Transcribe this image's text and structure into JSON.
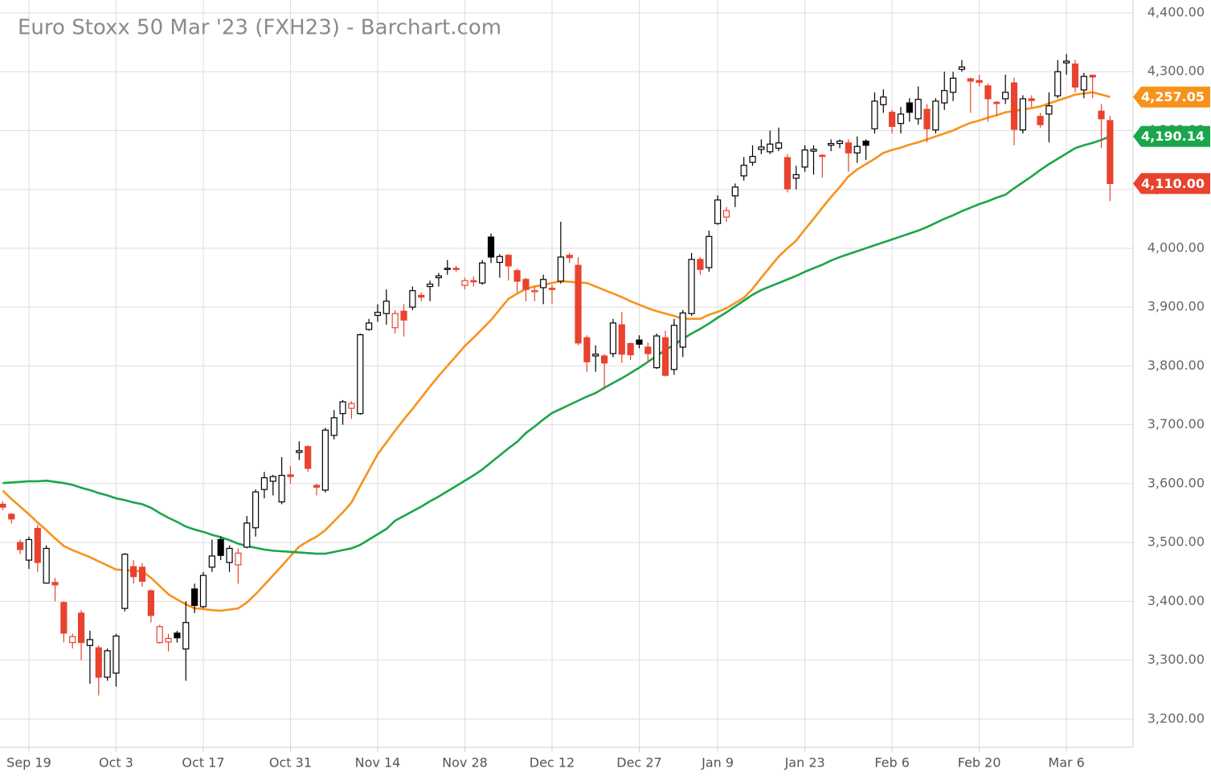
{
  "chart_data": {
    "type": "candlestick",
    "title": "Euro Stoxx 50 Mar '23 (FXH23) - Barchart.com",
    "categories": [
      null,
      null,
      null,
      "Sep 19",
      null,
      null,
      null,
      null,
      null,
      null,
      null,
      null,
      null,
      "Oct 3",
      null,
      null,
      null,
      null,
      null,
      null,
      null,
      null,
      null,
      "Oct 17",
      null,
      null,
      null,
      null,
      null,
      null,
      null,
      null,
      null,
      "Oct 31",
      null,
      null,
      null,
      null,
      null,
      null,
      null,
      null,
      null,
      "Nov 14",
      null,
      null,
      null,
      null,
      null,
      null,
      null,
      null,
      null,
      "Nov 28",
      null,
      null,
      null,
      null,
      null,
      null,
      null,
      null,
      null,
      "Dec 12",
      null,
      null,
      null,
      null,
      null,
      null,
      null,
      null,
      null,
      "Dec 27",
      null,
      null,
      null,
      null,
      null,
      null,
      null,
      null,
      "Jan 9",
      null,
      null,
      null,
      null,
      null,
      null,
      null,
      null,
      null,
      "Jan 23",
      null,
      null,
      null,
      null,
      null,
      null,
      null,
      null,
      null,
      "Feb 6",
      null,
      null,
      null,
      null,
      null,
      null,
      null,
      null,
      null,
      "Feb 20",
      null,
      null,
      null,
      null,
      null,
      null,
      null,
      null,
      null,
      "Mar 6",
      null,
      null,
      null,
      null,
      null
    ],
    "open": [
      3565,
      3548,
      3500,
      3470,
      3524,
      3431,
      3432,
      3398,
      3330,
      3380,
      3325,
      3321,
      3271,
      3278,
      3388,
      3459,
      3458,
      3418,
      3330,
      3331,
      3346,
      3319,
      3421,
      3391,
      3458,
      3505,
      3466,
      3462,
      3492,
      3525,
      3590,
      3604,
      3569,
      3615,
      3653,
      3663,
      3597,
      3589,
      3682,
      3719,
      3728,
      3719,
      3862,
      3886,
      3889,
      3865,
      3893,
      3900,
      3920,
      3935,
      3950,
      3964,
      3966,
      3937,
      3945,
      3941,
      4019,
      3976,
      3988,
      3962,
      3947,
      3926,
      3933,
      3932,
      3944,
      3988,
      3971,
      3848,
      3817,
      3817,
      3821,
      3870,
      3838,
      3844,
      3832,
      3797,
      3848,
      3794,
      3832,
      3889,
      3981,
      3967,
      4042,
      4053,
      4089,
      4123,
      4146,
      4168,
      4164,
      4170,
      4154,
      4119,
      4138,
      4165,
      4158,
      4175,
      4178,
      4179,
      4162,
      4182,
      4203,
      4244,
      4231,
      4212,
      4247,
      4220,
      4236,
      4201,
      4247,
      4265,
      4304,
      4288,
      4285,
      4276,
      4248,
      4254,
      4281,
      4201,
      4254,
      4224,
      4228,
      4259,
      4315,
      4313,
      4269,
      4294,
      4233,
      4217
    ],
    "high": [
      3570,
      3550,
      3505,
      3510,
      3530,
      3495,
      3440,
      3400,
      3345,
      3385,
      3350,
      3325,
      3320,
      3345,
      3482,
      3470,
      3465,
      3420,
      3360,
      3345,
      3350,
      3400,
      3430,
      3450,
      3505,
      3510,
      3495,
      3490,
      3545,
      3590,
      3620,
      3615,
      3645,
      3630,
      3672,
      3665,
      3600,
      3695,
      3725,
      3742,
      3740,
      3855,
      3880,
      3905,
      3930,
      3895,
      3905,
      3935,
      3925,
      3945,
      3958,
      3980,
      3970,
      3950,
      3952,
      3980,
      4025,
      3990,
      3990,
      3965,
      3950,
      3935,
      3955,
      3938,
      4045,
      3992,
      3985,
      3852,
      3835,
      3820,
      3880,
      3892,
      3840,
      3852,
      3840,
      3855,
      3860,
      3880,
      3895,
      3992,
      3985,
      4030,
      4090,
      4070,
      4110,
      4155,
      4175,
      4185,
      4200,
      4205,
      4160,
      4140,
      4175,
      4175,
      4160,
      4185,
      4185,
      4185,
      4190,
      4185,
      4265,
      4270,
      4235,
      4240,
      4255,
      4275,
      4245,
      4255,
      4300,
      4300,
      4320,
      4290,
      4295,
      4280,
      4250,
      4295,
      4290,
      4260,
      4260,
      4230,
      4265,
      4320,
      4330,
      4320,
      4298,
      4295,
      4245,
      4225
    ],
    "low": [
      3555,
      3532,
      3480,
      3455,
      3450,
      3430,
      3400,
      3330,
      3320,
      3300,
      3260,
      3240,
      3265,
      3255,
      3383,
      3430,
      3425,
      3364,
      3328,
      3315,
      3330,
      3265,
      3380,
      3388,
      3450,
      3470,
      3450,
      3430,
      3490,
      3510,
      3575,
      3580,
      3565,
      3600,
      3640,
      3620,
      3580,
      3585,
      3675,
      3700,
      3710,
      3717,
      3860,
      3875,
      3870,
      3855,
      3850,
      3895,
      3910,
      3910,
      3935,
      3955,
      3960,
      3930,
      3935,
      3938,
      3975,
      3950,
      3945,
      3925,
      3910,
      3910,
      3905,
      3905,
      3940,
      3975,
      3835,
      3790,
      3790,
      3760,
      3815,
      3805,
      3810,
      3830,
      3805,
      3795,
      3782,
      3785,
      3815,
      3885,
      3955,
      3960,
      4040,
      4045,
      4070,
      4115,
      4140,
      4160,
      4160,
      4165,
      4095,
      4100,
      4130,
      4125,
      4120,
      4165,
      4170,
      4130,
      4145,
      4150,
      4195,
      4230,
      4195,
      4195,
      4215,
      4210,
      4180,
      4195,
      4235,
      4250,
      4300,
      4230,
      4275,
      4215,
      4225,
      4245,
      4175,
      4195,
      4240,
      4205,
      4180,
      4255,
      4295,
      4265,
      4255,
      4255,
      4170,
      4080
    ],
    "close": [
      3560,
      3540,
      3488,
      3505,
      3466,
      3490,
      3428,
      3346,
      3340,
      3330,
      3335,
      3271,
      3316,
      3341,
      3480,
      3442,
      3434,
      3376,
      3357,
      3337,
      3338,
      3364,
      3393,
      3444,
      3477,
      3478,
      3490,
      3482,
      3533,
      3586,
      3610,
      3612,
      3614,
      3612,
      3656,
      3626,
      3594,
      3691,
      3712,
      3739,
      3736,
      3853,
      3873,
      3891,
      3910,
      3889,
      3878,
      3928,
      3917,
      3939,
      3953,
      3966,
      3964,
      3945,
      3944,
      3975,
      3985,
      3986,
      3970,
      3944,
      3930,
      3928,
      3947,
      3930,
      3985,
      3984,
      3839,
      3807,
      3820,
      3805,
      3873,
      3820,
      3819,
      3837,
      3821,
      3851,
      3784,
      3869,
      3890,
      3981,
      3964,
      4020,
      4082,
      4064,
      4104,
      4141,
      4156,
      4172,
      4177,
      4179,
      4101,
      4125,
      4167,
      4168,
      4156,
      4178,
      4182,
      4162,
      4173,
      4175,
      4250,
      4257,
      4207,
      4228,
      4231,
      4253,
      4203,
      4250,
      4268,
      4289,
      4308,
      4284,
      4282,
      4254,
      4246,
      4265,
      4202,
      4254,
      4251,
      4210,
      4242,
      4300,
      4318,
      4274,
      4292,
      4291,
      4220,
      4110
    ],
    "last_label": "4,110.00",
    "up_color": "#000000",
    "down_color": "#e8432e",
    "series": [
      {
        "color": "#f7931a",
        "last_label": "4,257.05",
        "values": [
          3588,
          3574,
          3561,
          3548,
          3534,
          3521,
          3507,
          3494,
          3487,
          3481,
          3475,
          3468,
          3461,
          3454,
          3453,
          3452,
          3451,
          3440,
          3426,
          3412,
          3403,
          3395,
          3388,
          3387,
          3385,
          3384,
          3386,
          3388,
          3398,
          3412,
          3428,
          3444,
          3460,
          3477,
          3493,
          3502,
          3510,
          3521,
          3536,
          3551,
          3568,
          3596,
          3623,
          3650,
          3670,
          3690,
          3709,
          3727,
          3746,
          3765,
          3783,
          3800,
          3817,
          3834,
          3848,
          3863,
          3878,
          3896,
          3914,
          3923,
          3931,
          3935,
          3938,
          3941,
          3944,
          3943,
          3942,
          3941,
          3935,
          3929,
          3923,
          3917,
          3910,
          3904,
          3898,
          3893,
          3889,
          3885,
          3880,
          3880,
          3880,
          3887,
          3892,
          3898,
          3907,
          3916,
          3931,
          3950,
          3968,
          3986,
          4000,
          4013,
          4032,
          4050,
          4069,
          4087,
          4104,
          4122,
          4134,
          4143,
          4152,
          4162,
          4167,
          4171,
          4176,
          4180,
          4185,
          4190,
          4195,
          4200,
          4207,
          4213,
          4217,
          4222,
          4226,
          4231,
          4233,
          4236,
          4238,
          4241,
          4246,
          4251,
          4256,
          4261,
          4263,
          4265,
          4261,
          4257.05
        ]
      },
      {
        "color": "#1aa64a",
        "last_label": "4,190.14",
        "values": [
          3601,
          3602,
          3603,
          3604,
          3604,
          3605,
          3603,
          3601,
          3598,
          3593,
          3589,
          3584,
          3580,
          3575,
          3572,
          3568,
          3565,
          3559,
          3550,
          3542,
          3535,
          3527,
          3522,
          3518,
          3513,
          3509,
          3504,
          3498,
          3494,
          3491,
          3488,
          3486,
          3485,
          3484,
          3483,
          3482,
          3481,
          3481,
          3484,
          3487,
          3490,
          3496,
          3505,
          3514,
          3523,
          3537,
          3545,
          3553,
          3561,
          3570,
          3578,
          3587,
          3596,
          3605,
          3614,
          3624,
          3636,
          3648,
          3660,
          3671,
          3686,
          3697,
          3709,
          3720,
          3727,
          3734,
          3741,
          3748,
          3754,
          3763,
          3771,
          3779,
          3788,
          3797,
          3807,
          3817,
          3827,
          3836,
          3846,
          3855,
          3863,
          3872,
          3882,
          3891,
          3901,
          3911,
          3921,
          3929,
          3935,
          3941,
          3947,
          3953,
          3960,
          3966,
          3972,
          3979,
          3985,
          3990,
          3995,
          4000,
          4005,
          4010,
          4015,
          4020,
          4025,
          4030,
          4036,
          4043,
          4050,
          4056,
          4063,
          4069,
          4075,
          4080,
          4086,
          4091,
          4102,
          4112,
          4122,
          4133,
          4143,
          4152,
          4161,
          4170,
          4175,
          4179,
          4184,
          4190.14
        ]
      }
    ],
    "ylim": [
      3152,
      4400
    ],
    "yticks": [
      {
        "value": 3200,
        "label": "3,200.00"
      },
      {
        "value": 3300,
        "label": "3,300.00"
      },
      {
        "value": 3400,
        "label": "3,400.00"
      },
      {
        "value": 3500,
        "label": "3,500.00"
      },
      {
        "value": 3600,
        "label": "3,600.00"
      },
      {
        "value": 3700,
        "label": "3,700.00"
      },
      {
        "value": 3800,
        "label": "3,800.00"
      },
      {
        "value": 3900,
        "label": "3,900.00"
      },
      {
        "value": 4000,
        "label": "4,000.00"
      },
      {
        "value": 4100,
        "label": "4,100.00"
      },
      {
        "value": 4200,
        "label": "4,200.00"
      },
      {
        "value": 4300,
        "label": "4,300.00"
      },
      {
        "value": 4400,
        "label": "4,400.00"
      }
    ],
    "grid": true
  }
}
